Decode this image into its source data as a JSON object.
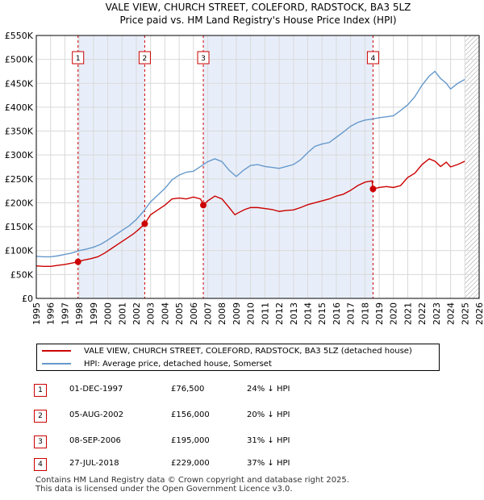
{
  "chart_data": {
    "type": "line",
    "title": "VALE VIEW, CHURCH STREET, COLEFORD, RADSTOCK, BA3 5LZ",
    "subtitle": "Price paid vs. HM Land Registry's House Price Index (HPI)",
    "xlabel": "",
    "ylabel": "",
    "xlim": [
      1995,
      2026
    ],
    "ylim": [
      0,
      550000
    ],
    "x_ticks": [
      "1995",
      "1996",
      "1997",
      "1998",
      "1999",
      "2000",
      "2001",
      "2002",
      "2003",
      "2004",
      "2005",
      "2006",
      "2007",
      "2008",
      "2009",
      "2010",
      "2011",
      "2012",
      "2013",
      "2014",
      "2015",
      "2016",
      "2017",
      "2018",
      "2019",
      "2020",
      "2021",
      "2022",
      "2023",
      "2024",
      "2025",
      "2026"
    ],
    "y_ticks": [
      {
        "value": 0,
        "label": "£0"
      },
      {
        "value": 50000,
        "label": "£50K"
      },
      {
        "value": 100000,
        "label": "£100K"
      },
      {
        "value": 150000,
        "label": "£150K"
      },
      {
        "value": 200000,
        "label": "£200K"
      },
      {
        "value": 250000,
        "label": "£250K"
      },
      {
        "value": 300000,
        "label": "£300K"
      },
      {
        "value": 350000,
        "label": "£350K"
      },
      {
        "value": 400000,
        "label": "£400K"
      },
      {
        "value": 450000,
        "label": "£450K"
      },
      {
        "value": 500000,
        "label": "£500K"
      },
      {
        "value": 550000,
        "label": "£550K"
      }
    ],
    "series": [
      {
        "name": "VALE VIEW, CHURCH STREET, COLEFORD, RADSTOCK, BA3 5LZ (detached house)",
        "color": "#cc0000",
        "x": [
          1995.0,
          1995.5,
          1996.0,
          1996.5,
          1997.0,
          1997.5,
          1997.92,
          1998.3,
          1998.8,
          1999.3,
          1999.8,
          2000.3,
          2000.8,
          2001.3,
          2001.8,
          2002.2,
          2002.59,
          2003.0,
          2003.5,
          2004.0,
          2004.5,
          2005.0,
          2005.5,
          2006.0,
          2006.5,
          2006.69,
          2007.0,
          2007.5,
          2008.0,
          2008.5,
          2008.9,
          2009.2,
          2009.6,
          2010.0,
          2010.5,
          2011.0,
          2011.5,
          2012.0,
          2012.5,
          2013.0,
          2013.5,
          2014.0,
          2014.5,
          2015.0,
          2015.5,
          2016.0,
          2016.5,
          2017.0,
          2017.5,
          2018.0,
          2018.5,
          2018.57,
          2019.0,
          2019.5,
          2020.0,
          2020.5,
          2021.0,
          2021.5,
          2022.0,
          2022.5,
          2022.9,
          2023.3,
          2023.7,
          2024.0,
          2024.5,
          2025.0
        ],
        "y": [
          68000,
          67000,
          67000,
          69000,
          71000,
          74000,
          76500,
          80000,
          83000,
          87000,
          95000,
          105000,
          115000,
          125000,
          135000,
          145000,
          156000,
          175000,
          185000,
          195000,
          208000,
          210000,
          208000,
          212000,
          208000,
          195000,
          204000,
          214000,
          208000,
          190000,
          175000,
          180000,
          186000,
          190000,
          190000,
          188000,
          186000,
          182000,
          184000,
          185000,
          190000,
          196000,
          200000,
          204000,
          208000,
          214000,
          218000,
          226000,
          236000,
          243000,
          246000,
          229000,
          232000,
          234000,
          232000,
          236000,
          253000,
          262000,
          280000,
          292000,
          287000,
          276000,
          285000,
          275000,
          280000,
          287000
        ],
        "points": [
          {
            "x": 1997.92,
            "y": 76500
          },
          {
            "x": 2002.59,
            "y": 156000
          },
          {
            "x": 2006.69,
            "y": 195000
          },
          {
            "x": 2018.57,
            "y": 229000
          }
        ]
      },
      {
        "name": "HPI: Average price, detached house, Somerset",
        "color": "#6699cc",
        "x": [
          1995.0,
          1995.5,
          1996.0,
          1996.5,
          1997.0,
          1997.5,
          1998.0,
          1998.5,
          1999.0,
          1999.5,
          2000.0,
          2000.5,
          2001.0,
          2001.5,
          2002.0,
          2002.5,
          2003.0,
          2003.5,
          2004.0,
          2004.5,
          2005.0,
          2005.5,
          2006.0,
          2006.5,
          2007.0,
          2007.5,
          2008.0,
          2008.5,
          2009.0,
          2009.5,
          2010.0,
          2010.5,
          2011.0,
          2011.5,
          2012.0,
          2012.5,
          2013.0,
          2013.5,
          2014.0,
          2014.5,
          2015.0,
          2015.5,
          2016.0,
          2016.5,
          2017.0,
          2017.5,
          2018.0,
          2018.5,
          2019.0,
          2019.5,
          2020.0,
          2020.5,
          2021.0,
          2021.5,
          2022.0,
          2022.5,
          2022.9,
          2023.3,
          2023.7,
          2024.0,
          2024.5,
          2025.0
        ],
        "y": [
          88000,
          87000,
          87000,
          89000,
          92000,
          95000,
          100000,
          103000,
          107000,
          113000,
          122000,
          132000,
          142000,
          152000,
          165000,
          182000,
          202000,
          216000,
          230000,
          248000,
          258000,
          264000,
          266000,
          276000,
          286000,
          292000,
          286000,
          268000,
          255000,
          268000,
          278000,
          280000,
          276000,
          274000,
          272000,
          276000,
          280000,
          290000,
          305000,
          318000,
          323000,
          326000,
          337000,
          348000,
          360000,
          368000,
          373000,
          375000,
          378000,
          380000,
          382000,
          393000,
          405000,
          422000,
          446000,
          465000,
          475000,
          460000,
          450000,
          438000,
          450000,
          458000
        ]
      }
    ],
    "sale_markers": [
      {
        "label": "1",
        "x": 1997.92
      },
      {
        "label": "2",
        "x": 2002.59
      },
      {
        "label": "3",
        "x": 2006.69
      },
      {
        "label": "4",
        "x": 2018.57
      }
    ],
    "shaded_ranges": [
      [
        1997.92,
        2002.59
      ],
      [
        2006.69,
        2018.57
      ]
    ],
    "hatched_from": 2025.0
  },
  "legend": {
    "property": "VALE VIEW, CHURCH STREET, COLEFORD, RADSTOCK, BA3 5LZ (detached house)",
    "hpi": "HPI: Average price, detached house, Somerset"
  },
  "sales": [
    {
      "num": "1",
      "date": "01-DEC-1997",
      "price": "£76,500",
      "hpi": "24% ↓ HPI"
    },
    {
      "num": "2",
      "date": "05-AUG-2002",
      "price": "£156,000",
      "hpi": "20% ↓ HPI"
    },
    {
      "num": "3",
      "date": "08-SEP-2006",
      "price": "£195,000",
      "hpi": "31% ↓ HPI"
    },
    {
      "num": "4",
      "date": "27-JUL-2018",
      "price": "£229,000",
      "hpi": "37% ↓ HPI"
    }
  ],
  "footer": {
    "line1": "Contains HM Land Registry data © Crown copyright and database right 2025.",
    "line2": "This data is licensed under the Open Government Licence v3.0."
  }
}
